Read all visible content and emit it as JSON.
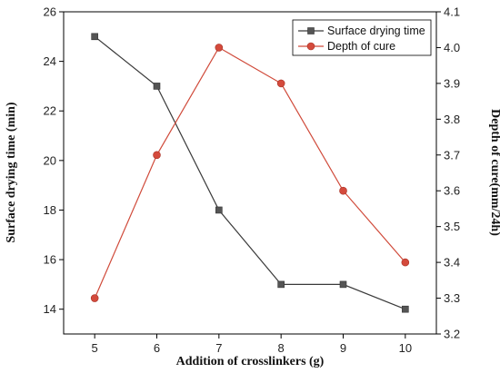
{
  "chart_data": {
    "type": "line",
    "title": "",
    "xlabel": "Addition of crosslinkers (g)",
    "ylabel": "Surface drying time (min)",
    "y2label": "Depth of cure(mm/24h)",
    "x": [
      5,
      6,
      7,
      8,
      9,
      10
    ],
    "x_tick_labels": [
      "5",
      "6",
      "7",
      "8",
      "9",
      "10"
    ],
    "xlim": [
      4.5,
      10.5
    ],
    "ylim": [
      13,
      26
    ],
    "y_ticks": [
      14,
      16,
      18,
      20,
      22,
      24,
      26
    ],
    "y2lim": [
      3.2,
      4.1
    ],
    "y2_ticks": [
      "3.2",
      "3.3",
      "3.4",
      "3.5",
      "3.6",
      "3.7",
      "3.8",
      "3.9",
      "4.0",
      "4.1"
    ],
    "grid": false,
    "legend_position": "top-right",
    "series": [
      {
        "name": "Surface drying time",
        "axis": "left",
        "marker": "square",
        "color": "#3a3a3a",
        "values": [
          25,
          23,
          18,
          15,
          15,
          14
        ]
      },
      {
        "name": "Depth of cure",
        "axis": "right",
        "marker": "circle",
        "color": "#d04a3a",
        "values": [
          3.3,
          3.7,
          4.0,
          3.9,
          3.6,
          3.4
        ]
      }
    ]
  }
}
